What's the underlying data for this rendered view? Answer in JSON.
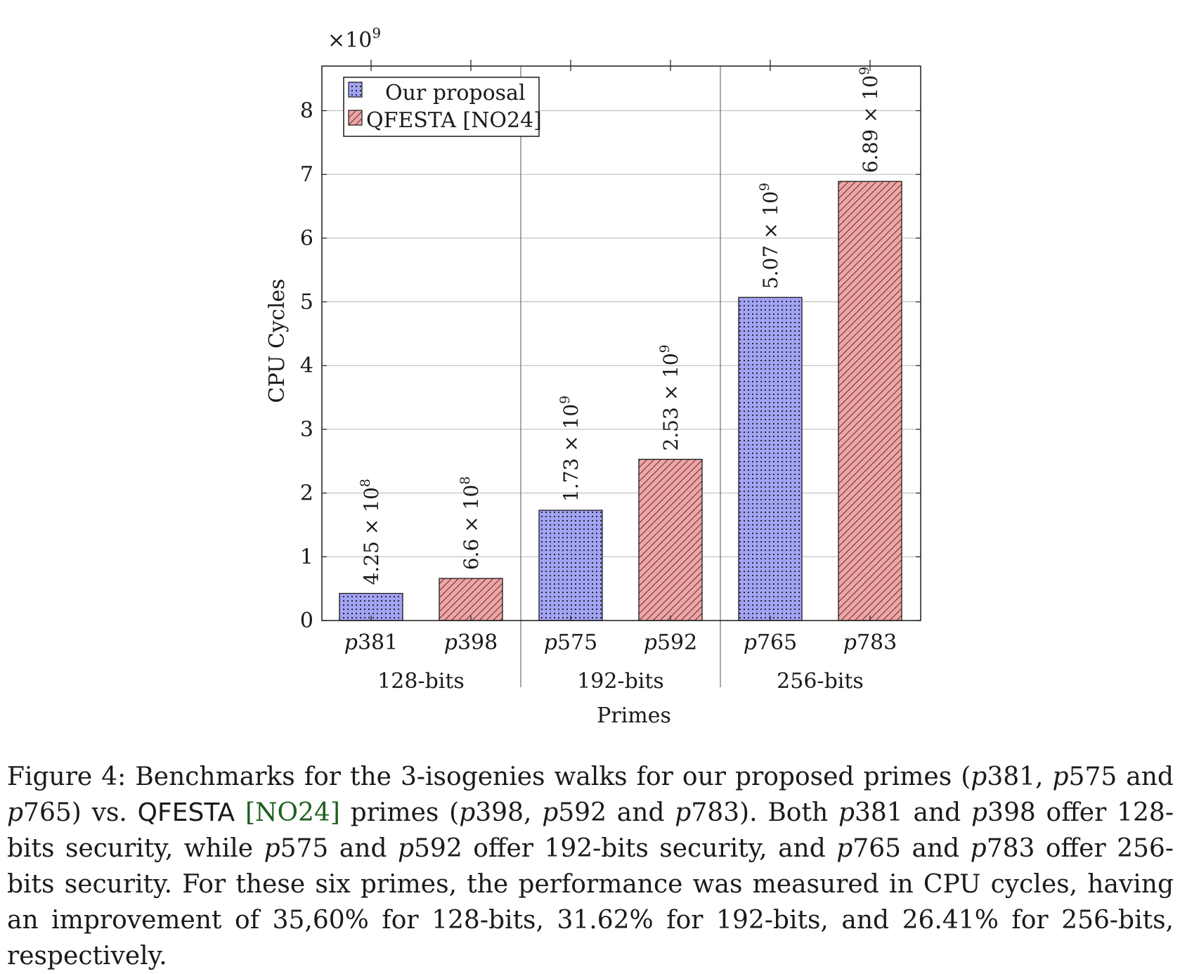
{
  "chart_data": {
    "type": "bar",
    "ylabel": "CPU Cycles",
    "xlabel": "Primes",
    "y_multiplier": "×10",
    "y_multiplier_exp": "9",
    "ylim": [
      0,
      8.7
    ],
    "yticks": [
      0,
      1,
      2,
      3,
      4,
      5,
      6,
      7,
      8
    ],
    "grid": true,
    "legend_position": "top-left",
    "categories": [
      "p381",
      "p398",
      "p575",
      "p592",
      "p765",
      "p783"
    ],
    "groups": [
      {
        "label": "128-bits",
        "members": [
          "p381",
          "p398"
        ]
      },
      {
        "label": "192-bits",
        "members": [
          "p575",
          "p592"
        ]
      },
      {
        "label": "256-bits",
        "members": [
          "p765",
          "p783"
        ]
      }
    ],
    "series": [
      {
        "name": "Our proposal",
        "color": "#a3a3f5",
        "pattern": "dots",
        "points": [
          {
            "category": "p381",
            "value": 0.425,
            "label_mantissa": "4.25 × 10",
            "label_exp": "8"
          },
          {
            "category": "p575",
            "value": 1.73,
            "label_mantissa": "1.73 × 10",
            "label_exp": "9"
          },
          {
            "category": "p765",
            "value": 5.07,
            "label_mantissa": "5.07 × 10",
            "label_exp": "9"
          }
        ]
      },
      {
        "name": "QFESTA [NO24]",
        "color": "#f2a3a3",
        "pattern": "diagonal-lines",
        "points": [
          {
            "category": "p398",
            "value": 0.66,
            "label_mantissa": "6.6 × 10",
            "label_exp": "8"
          },
          {
            "category": "p592",
            "value": 2.53,
            "label_mantissa": "2.53 × 10",
            "label_exp": "9"
          },
          {
            "category": "p783",
            "value": 6.89,
            "label_mantissa": "6.89 × 10",
            "label_exp": "9"
          }
        ]
      }
    ]
  },
  "caption": {
    "prefix": "Figure 4:  Benchmarks for the 3-isogenies walks for our proposed primes (",
    "p381a": "p",
    "p381b": "381, ",
    "p575a": "p",
    "p575b": "575 and ",
    "p765a": "p",
    "p765b": "765) vs. ",
    "qfesta": "QFESTA",
    "cite": "[NO24]",
    "mid1": " primes (",
    "p398a": "p",
    "p398b": "398, ",
    "p592a": "p",
    "p592b": "592 and ",
    "p783a": "p",
    "p783b": "783). Both ",
    "s1a": "p",
    "s1b": "381 and ",
    "s2a": "p",
    "s2b": "398 offer 128-bits security, while ",
    "s3a": "p",
    "s3b": "575 and ",
    "s4a": "p",
    "s4b": "592 offer 192-bits security, and ",
    "s5a": "p",
    "s5b": "765 and ",
    "s6a": "p",
    "s6b": "783 offer 256-bits security.  For these six primes, the performance was measured in CPU cycles, having an improvement of 35,60% for 128-bits, 31.62% for 192-bits, and 26.41% for 256-bits, respectively."
  }
}
